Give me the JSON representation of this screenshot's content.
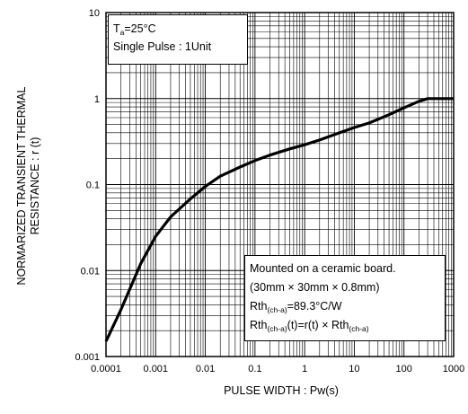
{
  "conditions": {
    "ta_symbol": "T",
    "ta_sub": "a",
    "ta_value": "=25°C",
    "pulse": "Single Pulse : 1Unit"
  },
  "note": {
    "line1": "Mounted on a ceramic board.",
    "line2": "(30mm × 30mm × 0.8mm)",
    "rth_label": "Rth",
    "rth_sub": "(ch-a)",
    "rth_value": "=89.3°C/W",
    "formula_prefix": "Rth",
    "formula_sub1": "(ch-a)",
    "formula_mid": "(t)=r(t) × Rth",
    "formula_sub2": "(ch-a)"
  },
  "chart_data": {
    "type": "line",
    "title": "",
    "xlabel": "PULSE WIDTH : Pw(s)",
    "ylabel_line1": "NORMARIZED TRANSIENT THERMAL",
    "ylabel_line2": "RESISTANCE : r (t)",
    "x_scale": "log",
    "y_scale": "log",
    "xlim": [
      0.0001,
      1000
    ],
    "ylim": [
      0.001,
      10
    ],
    "grid": true,
    "x_ticks": [
      "0.0001",
      "0.001",
      "0.01",
      "0.1",
      "1",
      "10",
      "100",
      "1000"
    ],
    "y_ticks": [
      "0.001",
      "0.01",
      "0.1",
      "1",
      "10"
    ],
    "series": [
      {
        "x": [
          0.0001,
          0.0002,
          0.0005,
          0.001,
          0.002,
          0.005,
          0.01,
          0.02,
          0.05,
          0.1,
          0.2,
          0.5,
          1,
          2,
          5,
          10,
          20,
          50,
          100,
          200,
          300,
          500,
          1000
        ],
        "y": [
          0.0015,
          0.0035,
          0.012,
          0.025,
          0.042,
          0.068,
          0.095,
          0.125,
          0.16,
          0.19,
          0.22,
          0.26,
          0.29,
          0.33,
          0.4,
          0.46,
          0.52,
          0.65,
          0.78,
          0.93,
          1.0,
          1.0,
          1.0
        ]
      }
    ]
  }
}
